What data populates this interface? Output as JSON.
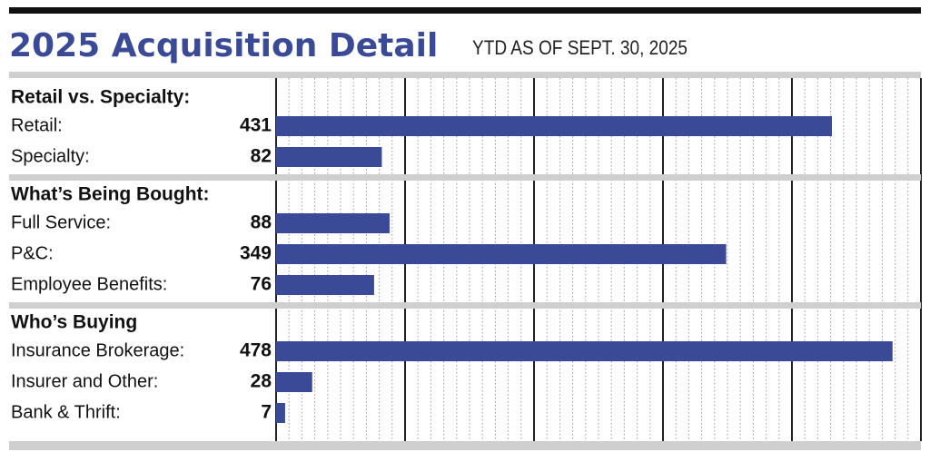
{
  "chart_data": {
    "type": "bar",
    "orientation": "horizontal",
    "title": "2025 Acquisition Detail",
    "subtitle": "YTD AS OF SEPT. 30, 2025",
    "color": "#3b4a96",
    "xlim": [
      0,
      500
    ],
    "xticks": [
      0,
      100,
      200,
      300,
      400,
      500
    ],
    "xminorticks": [
      10,
      20,
      30,
      40,
      50,
      60,
      70,
      80,
      90,
      110,
      120,
      130,
      140,
      150,
      160,
      170,
      180,
      190,
      210,
      220,
      230,
      240,
      250,
      260,
      270,
      280,
      290,
      310,
      320,
      330,
      340,
      350,
      360,
      370,
      380,
      390,
      410,
      420,
      430,
      440,
      450,
      460,
      470,
      480,
      490
    ],
    "grid": true,
    "groups": [
      {
        "name": "Retail vs. Specialty:",
        "categories": [
          "Retail:",
          "Specialty:"
        ],
        "values": [
          431,
          82
        ]
      },
      {
        "name": "What’s Being Bought:",
        "categories": [
          "Full Service:",
          "P&C:",
          "Employee Benefits:"
        ],
        "values": [
          88,
          349,
          76
        ]
      },
      {
        "name": "Who’s Buying",
        "categories": [
          "Insurance Brokerage:",
          "Insurer and Other:",
          "Bank & Thrift:"
        ],
        "values": [
          478,
          28,
          7
        ]
      }
    ]
  }
}
